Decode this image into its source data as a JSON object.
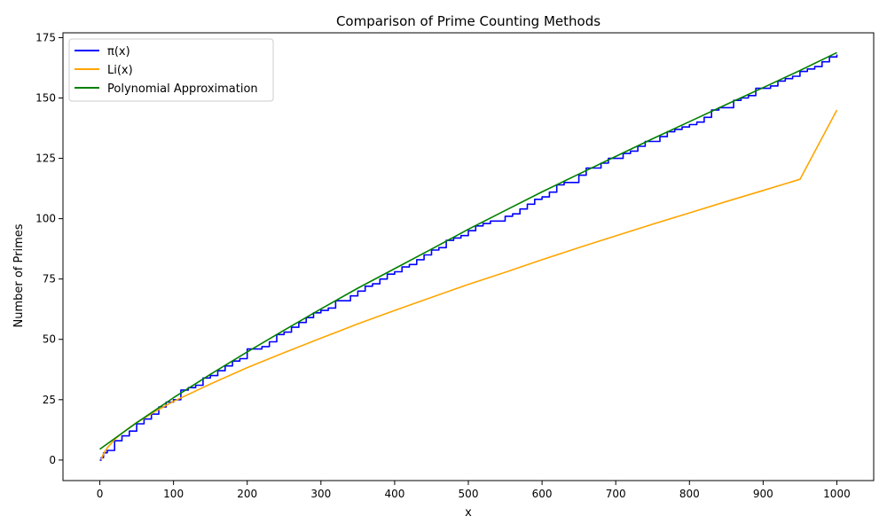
{
  "chart_data": {
    "type": "line",
    "title": "Comparison of Prime Counting Methods",
    "xlabel": "x",
    "ylabel": "Number of Primes",
    "xlim": [
      -50,
      1050
    ],
    "ylim": [
      -8.5,
      177
    ],
    "xticks": [
      0,
      100,
      200,
      300,
      400,
      500,
      600,
      700,
      800,
      900,
      1000
    ],
    "yticks": [
      0,
      25,
      50,
      75,
      100,
      125,
      150,
      175
    ],
    "grid": false,
    "legend_position": "upper-left",
    "series": [
      {
        "name": "π(x)",
        "color": "#0000ff",
        "style": "step",
        "x": [
          0,
          2,
          5,
          10,
          20,
          30,
          40,
          50,
          60,
          70,
          80,
          90,
          100,
          110,
          120,
          130,
          140,
          150,
          160,
          170,
          180,
          190,
          200,
          210,
          220,
          230,
          240,
          250,
          260,
          270,
          280,
          290,
          300,
          310,
          320,
          330,
          340,
          350,
          360,
          370,
          380,
          390,
          400,
          410,
          420,
          430,
          440,
          450,
          460,
          470,
          480,
          490,
          500,
          510,
          520,
          530,
          540,
          550,
          560,
          570,
          580,
          590,
          600,
          610,
          620,
          630,
          640,
          650,
          660,
          670,
          680,
          690,
          700,
          710,
          720,
          730,
          740,
          750,
          760,
          770,
          780,
          790,
          800,
          810,
          820,
          830,
          840,
          850,
          860,
          870,
          880,
          890,
          900,
          910,
          920,
          930,
          940,
          950,
          960,
          970,
          980,
          990,
          1000
        ],
        "y": [
          0,
          1,
          3,
          4,
          8,
          10,
          12,
          15,
          17,
          19,
          22,
          24,
          25,
          29,
          30,
          31,
          34,
          35,
          37,
          39,
          41,
          42,
          46,
          46,
          47,
          49,
          52,
          53,
          55,
          57,
          59,
          61,
          62,
          63,
          66,
          66,
          68,
          70,
          72,
          73,
          75,
          77,
          78,
          80,
          81,
          83,
          85,
          87,
          88,
          91,
          92,
          93,
          95,
          97,
          98,
          99,
          99,
          101,
          102,
          104,
          106,
          108,
          109,
          111,
          114,
          115,
          115,
          118,
          121,
          121,
          123,
          125,
          125,
          127,
          128,
          130,
          132,
          132,
          134,
          136,
          137,
          138,
          139,
          140,
          142,
          145,
          146,
          146,
          149,
          150,
          151,
          154,
          154,
          155,
          157,
          158,
          159,
          161,
          162,
          163,
          165,
          167,
          168
        ]
      },
      {
        "name": "Li(x)",
        "color": "#ffa500",
        "style": "line",
        "x": [
          2,
          3,
          5,
          10,
          20,
          30,
          40,
          50,
          75,
          100,
          150,
          200,
          250,
          300,
          350,
          400,
          450,
          500,
          550,
          600,
          650,
          700,
          750,
          800,
          850,
          900,
          950,
          1000
        ],
        "y": [
          0,
          1.1,
          2.6,
          5,
          8.5,
          11.1,
          13.4,
          15.5,
          20.1,
          24.3,
          31.5,
          38.3,
          44.5,
          50.5,
          56.4,
          62,
          67.4,
          72.8,
          77.8,
          83,
          88,
          92.9,
          97.7,
          102.4,
          107.1,
          111.7,
          116.3,
          145
        ]
      },
      {
        "name": "Polynomial Approximation",
        "color": "#008000",
        "style": "line",
        "x": [
          0,
          50,
          100,
          150,
          200,
          250,
          300,
          350,
          400,
          450,
          500,
          550,
          600,
          650,
          700,
          750,
          800,
          850,
          900,
          950,
          1000
        ],
        "y": [
          4.5,
          15.5,
          25.8,
          35.5,
          44.8,
          53.8,
          62.6,
          71.2,
          79.3,
          87.4,
          95.6,
          103.4,
          111.1,
          118.5,
          125.8,
          133.1,
          140.2,
          147.3,
          154.3,
          161.4,
          168.8
        ]
      }
    ]
  }
}
